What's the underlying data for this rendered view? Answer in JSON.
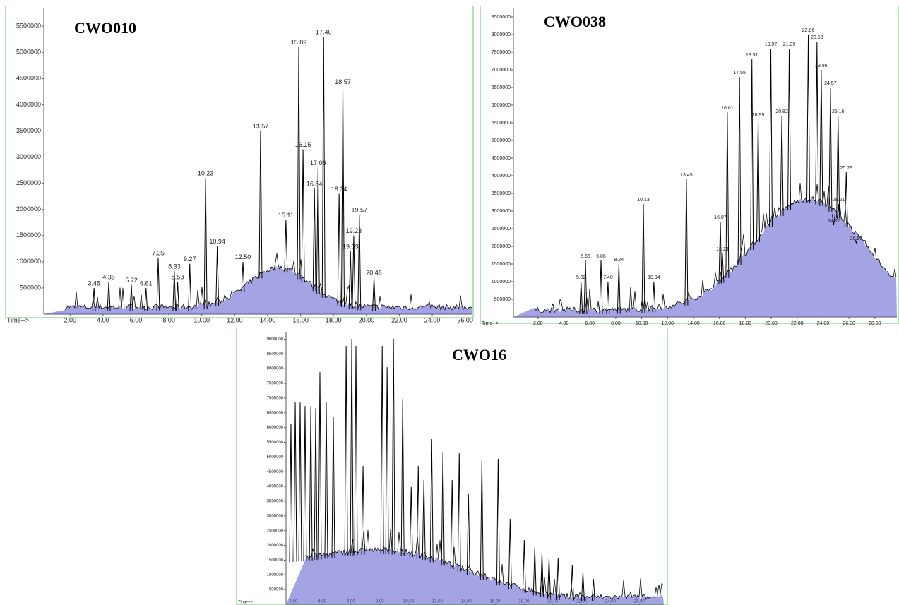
{
  "chart_data": [
    {
      "type": "line",
      "title": "CWO010",
      "x_label": "Time-->",
      "color": "#000000",
      "fill": "#5a5ad0",
      "xlim": [
        0.4,
        26.4
      ],
      "ylim": [
        0,
        5840000
      ],
      "xticks": [
        {
          "value": 2,
          "label": "2.00"
        },
        {
          "value": 4,
          "label": "4.00"
        },
        {
          "value": 6,
          "label": "6.00"
        },
        {
          "value": 8,
          "label": "8.00"
        },
        {
          "value": 10,
          "label": "10.00"
        },
        {
          "value": 12,
          "label": "12.00"
        },
        {
          "value": 14,
          "label": "14.00"
        },
        {
          "value": 16,
          "label": "16.00"
        },
        {
          "value": 18,
          "label": "18.00"
        },
        {
          "value": 20,
          "label": "20.00"
        },
        {
          "value": 22,
          "label": "22.00"
        },
        {
          "value": 24,
          "label": "24.00"
        },
        {
          "value": 26,
          "label": "26.00"
        }
      ],
      "yticks": [
        500000,
        1000000,
        1500000,
        2000000,
        2500000,
        3000000,
        3500000,
        4000000,
        4500000,
        5000000,
        5500000
      ],
      "x": [
        3.45,
        4.35,
        5.72,
        6.61,
        7.35,
        8.33,
        8.53,
        9.27,
        10.23,
        10.94,
        12.5,
        13.57,
        15.11,
        15.89,
        16.15,
        16.84,
        17.06,
        17.4,
        18.34,
        18.57,
        19.03,
        19.23,
        19.57,
        20.46
      ],
      "x_labels": [
        "3.45",
        "4.35",
        "5.72",
        "6.61",
        "7.35",
        "8.33",
        "8.53",
        "9.27",
        "10.23",
        "10.94",
        "12.50",
        "13.57",
        "15.11",
        "15.89",
        "16.15",
        "16.84",
        "17.06",
        "17.40",
        "18.34",
        "18.57",
        "19.03",
        "19.23",
        "19.57",
        "20.46"
      ],
      "values": [
        500000,
        620000,
        560000,
        500000,
        1080000,
        820000,
        620000,
        960000,
        2600000,
        1300000,
        1000000,
        3500000,
        1800000,
        5100000,
        3150000,
        2400000,
        2800000,
        5300000,
        2300000,
        4350000,
        1200000,
        1500000,
        1900000,
        700000
      ]
    },
    {
      "type": "line",
      "title": "CWO038",
      "x_label": "Time-->",
      "color": "#000000",
      "fill": "#5a5ad0",
      "xlim": [
        0.1,
        29.7
      ],
      "ylim": [
        0,
        8740000
      ],
      "xticks": [
        {
          "value": 2,
          "label": "2.00"
        },
        {
          "value": 4,
          "label": "4.00"
        },
        {
          "value": 6,
          "label": "6.00"
        },
        {
          "value": 8,
          "label": "8.00"
        },
        {
          "value": 10,
          "label": "10.00"
        },
        {
          "value": 12,
          "label": "12.00"
        },
        {
          "value": 14,
          "label": "14.00"
        },
        {
          "value": 16,
          "label": "16.00"
        },
        {
          "value": 18,
          "label": "18.00"
        },
        {
          "value": 20,
          "label": "20.00"
        },
        {
          "value": 22,
          "label": "22.00"
        },
        {
          "value": 24,
          "label": "24.00"
        },
        {
          "value": 26,
          "label": "26.00"
        },
        {
          "value": 28,
          "label": "28.00"
        }
      ],
      "yticks": [
        500000,
        1000000,
        1500000,
        2000000,
        2500000,
        3000000,
        3500000,
        4000000,
        4500000,
        5000000,
        5500000,
        6000000,
        6500000,
        7000000,
        7500000,
        8000000,
        8500000
      ],
      "x": [
        5.32,
        5.66,
        6.86,
        7.4,
        8.24,
        10.13,
        10.94,
        13.45,
        16.07,
        16.23,
        16.61,
        17.55,
        18.51,
        18.99,
        19.97,
        20.82,
        21.39,
        22.86,
        23.53,
        23.86,
        24.57,
        24.82,
        25.16,
        25.21,
        25.79,
        26.56
      ],
      "x_labels": [
        "5.32",
        "5.66",
        "6.86",
        "7.40",
        "8.24",
        "10.13",
        "10.94",
        "13.45",
        "16.07",
        "16.23",
        "16.61",
        "17.55",
        "18.51",
        "18.99",
        "19.97",
        "20.82",
        "21.39",
        "22.86",
        "23.53",
        "23.86",
        "24.57",
        "24.82",
        "25.16",
        "25.21",
        "25.79",
        "26.56"
      ],
      "values": [
        1000000,
        1600000,
        1600000,
        1000000,
        1500000,
        3200000,
        1000000,
        3900000,
        2700000,
        1800000,
        5800000,
        6800000,
        7300000,
        5600000,
        7600000,
        5700000,
        7600000,
        8000000,
        7800000,
        7000000,
        6500000,
        2600000,
        5700000,
        3200000,
        4100000,
        2100000
      ]
    },
    {
      "type": "line",
      "title": "CWO16",
      "x_label": "Time-->",
      "color": "#000000",
      "fill": "#5a5ad0",
      "xlim": [
        1.5,
        27.7
      ],
      "ylim": [
        0,
        9250000
      ],
      "xticks": [
        {
          "value": 2,
          "label": "2.00"
        },
        {
          "value": 4,
          "label": "4.00"
        },
        {
          "value": 6,
          "label": "6.00"
        },
        {
          "value": 8,
          "label": "8.00"
        },
        {
          "value": 10,
          "label": "10.00"
        },
        {
          "value": 12,
          "label": "12.00"
        },
        {
          "value": 14,
          "label": "14.00"
        },
        {
          "value": 16,
          "label": "16.00"
        },
        {
          "value": 18,
          "label": "18.00"
        },
        {
          "value": 20,
          "label": "20.00"
        },
        {
          "value": 22,
          "label": "22.00"
        },
        {
          "value": 24,
          "label": "24.00"
        },
        {
          "value": 26,
          "label": "26.00"
        }
      ],
      "yticks": [
        500000,
        1000000,
        1500000,
        2000000,
        2500000,
        3000000,
        3500000,
        4000000,
        4500000,
        5000000,
        5500000,
        6000000,
        6500000,
        7000000,
        7500000,
        8000000,
        8500000,
        9000000
      ],
      "x": [
        1.84,
        2.14,
        2.48,
        2.82,
        3.22,
        3.56,
        3.85,
        4.29,
        4.78,
        5.67,
        6.06,
        6.35,
        6.84,
        8.17,
        8.51,
        8.95,
        9.59,
        10.18,
        10.67,
        11.06,
        11.6,
        12.38,
        13.02,
        13.51,
        14.15,
        15.08,
        16.21,
        17.04,
        18.02,
        18.75,
        19.25,
        19.74,
        20.37,
        21.35,
        22.09,
        22.82
      ],
      "values": [
        6130000,
        6850000,
        6850000,
        6730000,
        6730000,
        6660000,
        7880000,
        6850000,
        6370000,
        8770000,
        9010000,
        8770000,
        4700000,
        8770000,
        8050000,
        9010000,
        6970000,
        3980000,
        4700000,
        4220000,
        5610000,
        5180000,
        4220000,
        5130000,
        3740000,
        4890000,
        4940000,
        2900000,
        2180000,
        1940000,
        1750000,
        1580000,
        1580000,
        1340000,
        1100000,
        860000
      ]
    }
  ]
}
